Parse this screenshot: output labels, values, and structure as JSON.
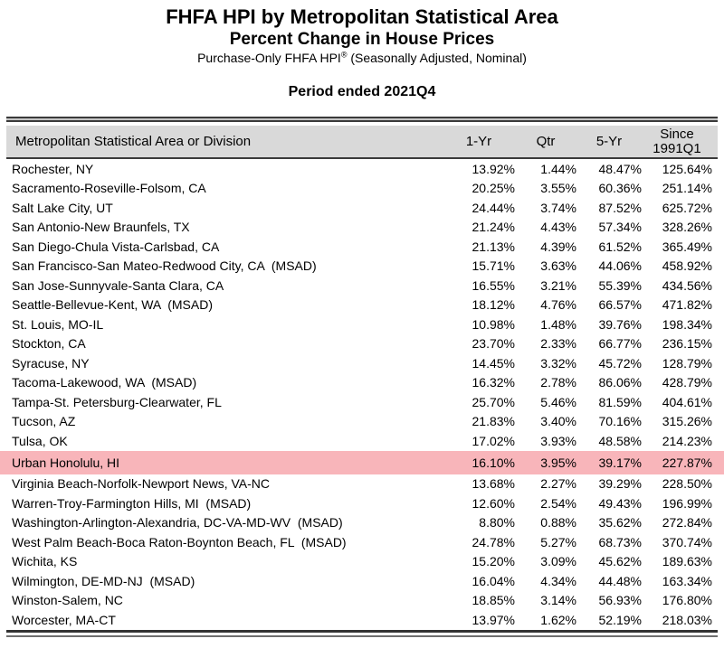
{
  "header": {
    "title": "FHFA HPI by Metropolitan Statistical Area",
    "subtitle": "Percent Change in House Prices",
    "source_prefix": "Purchase-Only FHFA HPI",
    "source_registered": "®",
    "source_suffix": " (Seasonally Adjusted, Nominal)",
    "period": "Period ended 2021Q4"
  },
  "table": {
    "columns": {
      "msa": "Metropolitan Statistical Area or Division",
      "one_yr": "1-Yr",
      "qtr": "Qtr",
      "five_yr": "5-Yr",
      "since": "Since 1991Q1"
    },
    "colors": {
      "header_bg": "#d9d9d9",
      "highlight_bg": "#f8b5ba",
      "rule": "#3a3a3a"
    },
    "highlighted_row": "Urban Honolulu, HI",
    "rows": [
      {
        "name": "Rochester, NY",
        "one_yr": "13.92%",
        "qtr": "1.44%",
        "five_yr": "48.47%",
        "since": "125.64%",
        "highlighted": false
      },
      {
        "name": "Sacramento-Roseville-Folsom, CA",
        "one_yr": "20.25%",
        "qtr": "3.55%",
        "five_yr": "60.36%",
        "since": "251.14%",
        "highlighted": false
      },
      {
        "name": "Salt Lake City, UT",
        "one_yr": "24.44%",
        "qtr": "3.74%",
        "five_yr": "87.52%",
        "since": "625.72%",
        "highlighted": false
      },
      {
        "name": "San Antonio-New Braunfels, TX",
        "one_yr": "21.24%",
        "qtr": "4.43%",
        "five_yr": "57.34%",
        "since": "328.26%",
        "highlighted": false
      },
      {
        "name": "San Diego-Chula Vista-Carlsbad, CA",
        "one_yr": "21.13%",
        "qtr": "4.39%",
        "five_yr": "61.52%",
        "since": "365.49%",
        "highlighted": false
      },
      {
        "name": "San Francisco-San Mateo-Redwood City, CA  (MSAD)",
        "one_yr": "15.71%",
        "qtr": "3.63%",
        "five_yr": "44.06%",
        "since": "458.92%",
        "highlighted": false
      },
      {
        "name": "San Jose-Sunnyvale-Santa Clara, CA",
        "one_yr": "16.55%",
        "qtr": "3.21%",
        "five_yr": "55.39%",
        "since": "434.56%",
        "highlighted": false
      },
      {
        "name": "Seattle-Bellevue-Kent, WA  (MSAD)",
        "one_yr": "18.12%",
        "qtr": "4.76%",
        "five_yr": "66.57%",
        "since": "471.82%",
        "highlighted": false
      },
      {
        "name": "St. Louis, MO-IL",
        "one_yr": "10.98%",
        "qtr": "1.48%",
        "five_yr": "39.76%",
        "since": "198.34%",
        "highlighted": false
      },
      {
        "name": "Stockton, CA",
        "one_yr": "23.70%",
        "qtr": "2.33%",
        "five_yr": "66.77%",
        "since": "236.15%",
        "highlighted": false
      },
      {
        "name": "Syracuse, NY",
        "one_yr": "14.45%",
        "qtr": "3.32%",
        "five_yr": "45.72%",
        "since": "128.79%",
        "highlighted": false
      },
      {
        "name": "Tacoma-Lakewood, WA  (MSAD)",
        "one_yr": "16.32%",
        "qtr": "2.78%",
        "five_yr": "86.06%",
        "since": "428.79%",
        "highlighted": false
      },
      {
        "name": "Tampa-St. Petersburg-Clearwater, FL",
        "one_yr": "25.70%",
        "qtr": "5.46%",
        "five_yr": "81.59%",
        "since": "404.61%",
        "highlighted": false
      },
      {
        "name": "Tucson, AZ",
        "one_yr": "21.83%",
        "qtr": "3.40%",
        "five_yr": "70.16%",
        "since": "315.26%",
        "highlighted": false
      },
      {
        "name": "Tulsa, OK",
        "one_yr": "17.02%",
        "qtr": "3.93%",
        "five_yr": "48.58%",
        "since": "214.23%",
        "highlighted": false
      },
      {
        "name": "Urban Honolulu, HI",
        "one_yr": "16.10%",
        "qtr": "3.95%",
        "five_yr": "39.17%",
        "since": "227.87%",
        "highlighted": true
      },
      {
        "name": "Virginia Beach-Norfolk-Newport News, VA-NC",
        "one_yr": "13.68%",
        "qtr": "2.27%",
        "five_yr": "39.29%",
        "since": "228.50%",
        "highlighted": false
      },
      {
        "name": "Warren-Troy-Farmington Hills, MI  (MSAD)",
        "one_yr": "12.60%",
        "qtr": "2.54%",
        "five_yr": "49.43%",
        "since": "196.99%",
        "highlighted": false
      },
      {
        "name": "Washington-Arlington-Alexandria, DC-VA-MD-WV  (MSAD)",
        "one_yr": "8.80%",
        "qtr": "0.88%",
        "five_yr": "35.62%",
        "since": "272.84%",
        "highlighted": false
      },
      {
        "name": "West Palm Beach-Boca Raton-Boynton Beach, FL  (MSAD)",
        "one_yr": "24.78%",
        "qtr": "5.27%",
        "five_yr": "68.73%",
        "since": "370.74%",
        "highlighted": false
      },
      {
        "name": "Wichita, KS",
        "one_yr": "15.20%",
        "qtr": "3.09%",
        "five_yr": "45.62%",
        "since": "189.63%",
        "highlighted": false
      },
      {
        "name": "Wilmington, DE-MD-NJ  (MSAD)",
        "one_yr": "16.04%",
        "qtr": "4.34%",
        "five_yr": "44.48%",
        "since": "163.34%",
        "highlighted": false
      },
      {
        "name": "Winston-Salem, NC",
        "one_yr": "18.85%",
        "qtr": "3.14%",
        "five_yr": "56.93%",
        "since": "176.80%",
        "highlighted": false
      },
      {
        "name": "Worcester, MA-CT",
        "one_yr": "13.97%",
        "qtr": "1.62%",
        "five_yr": "52.19%",
        "since": "218.03%",
        "highlighted": false
      }
    ]
  }
}
